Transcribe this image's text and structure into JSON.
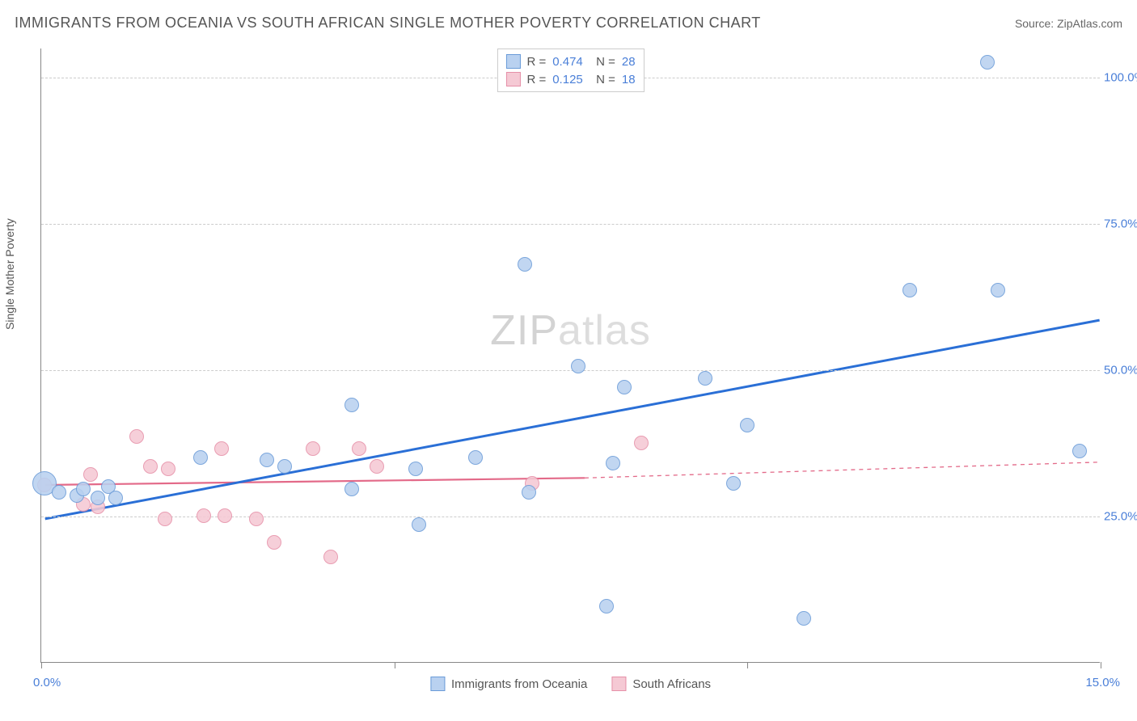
{
  "title": "IMMIGRANTS FROM OCEANIA VS SOUTH AFRICAN SINGLE MOTHER POVERTY CORRELATION CHART",
  "source_label": "Source: ZipAtlas.com",
  "y_axis_label": "Single Mother Poverty",
  "watermark": {
    "part1": "ZIP",
    "part2": "atlas"
  },
  "xlim": [
    0,
    15
  ],
  "ylim": [
    0,
    105
  ],
  "x_ticks": [
    0,
    5,
    10,
    15
  ],
  "x_tick_labels": {
    "left": "0.0%",
    "right": "15.0%"
  },
  "y_ticks": [
    25,
    50,
    75,
    100
  ],
  "y_tick_labels": [
    "25.0%",
    "50.0%",
    "75.0%",
    "100.0%"
  ],
  "grid_color": "#cccccc",
  "background_color": "#ffffff",
  "axis_color": "#888888",
  "series": [
    {
      "name": "Immigrants from Oceania",
      "fill": "#b9d1f0",
      "stroke": "#6a9bd8",
      "line_color": "#2a6fd6",
      "R": "0.474",
      "N": "28",
      "marker_radius": 9,
      "trendline": {
        "x1": 0.05,
        "y1": 24.5,
        "x2": 15.0,
        "y2": 58.5,
        "dashed": false,
        "width": 3
      },
      "points": [
        {
          "x": 0.05,
          "y": 30.5,
          "r": 15
        },
        {
          "x": 0.25,
          "y": 29.0
        },
        {
          "x": 0.5,
          "y": 28.5
        },
        {
          "x": 0.6,
          "y": 29.5
        },
        {
          "x": 0.8,
          "y": 28.0
        },
        {
          "x": 0.95,
          "y": 30.0
        },
        {
          "x": 1.05,
          "y": 28.0
        },
        {
          "x": 2.25,
          "y": 35.0
        },
        {
          "x": 3.2,
          "y": 34.5
        },
        {
          "x": 3.45,
          "y": 33.5
        },
        {
          "x": 4.4,
          "y": 44.0
        },
        {
          "x": 4.4,
          "y": 29.5
        },
        {
          "x": 5.3,
          "y": 33.0
        },
        {
          "x": 5.35,
          "y": 23.5
        },
        {
          "x": 6.15,
          "y": 35.0
        },
        {
          "x": 6.85,
          "y": 68.0
        },
        {
          "x": 6.9,
          "y": 29.0
        },
        {
          "x": 7.6,
          "y": 50.5
        },
        {
          "x": 8.0,
          "y": 9.5
        },
        {
          "x": 8.1,
          "y": 34.0
        },
        {
          "x": 8.25,
          "y": 47.0
        },
        {
          "x": 9.4,
          "y": 48.5
        },
        {
          "x": 9.8,
          "y": 30.5
        },
        {
          "x": 10.0,
          "y": 40.5
        },
        {
          "x": 10.8,
          "y": 7.5
        },
        {
          "x": 12.3,
          "y": 63.5
        },
        {
          "x": 13.4,
          "y": 102.5
        },
        {
          "x": 13.55,
          "y": 63.5
        },
        {
          "x": 14.7,
          "y": 36.0
        }
      ]
    },
    {
      "name": "South Africans",
      "fill": "#f5c9d4",
      "stroke": "#e690a8",
      "line_color": "#e36a89",
      "R": "0.125",
      "N": "18",
      "marker_radius": 9,
      "trendline_solid": {
        "x1": 0.05,
        "y1": 30.3,
        "x2": 7.7,
        "y2": 31.5,
        "dashed": false,
        "width": 2.2
      },
      "trendline_dashed": {
        "x1": 7.7,
        "y1": 31.5,
        "x2": 15.0,
        "y2": 34.2,
        "dashed": true,
        "width": 1.3
      },
      "points": [
        {
          "x": 0.05,
          "y": 30.3
        },
        {
          "x": 0.6,
          "y": 27.0
        },
        {
          "x": 0.7,
          "y": 32.0
        },
        {
          "x": 0.8,
          "y": 26.5
        },
        {
          "x": 1.35,
          "y": 38.5
        },
        {
          "x": 1.55,
          "y": 33.5
        },
        {
          "x": 1.75,
          "y": 24.5
        },
        {
          "x": 1.8,
          "y": 33.0
        },
        {
          "x": 2.3,
          "y": 25.0
        },
        {
          "x": 2.55,
          "y": 36.5
        },
        {
          "x": 2.6,
          "y": 25.0
        },
        {
          "x": 3.05,
          "y": 24.5
        },
        {
          "x": 3.3,
          "y": 20.5
        },
        {
          "x": 3.85,
          "y": 36.5
        },
        {
          "x": 4.1,
          "y": 18.0
        },
        {
          "x": 4.5,
          "y": 36.5
        },
        {
          "x": 4.75,
          "y": 33.5
        },
        {
          "x": 6.95,
          "y": 30.5
        },
        {
          "x": 8.5,
          "y": 37.5
        }
      ]
    }
  ],
  "legend_bottom": [
    {
      "label": "Immigrants from Oceania",
      "fill": "#b9d1f0",
      "stroke": "#6a9bd8"
    },
    {
      "label": "South Africans",
      "fill": "#f5c9d4",
      "stroke": "#e690a8"
    }
  ]
}
